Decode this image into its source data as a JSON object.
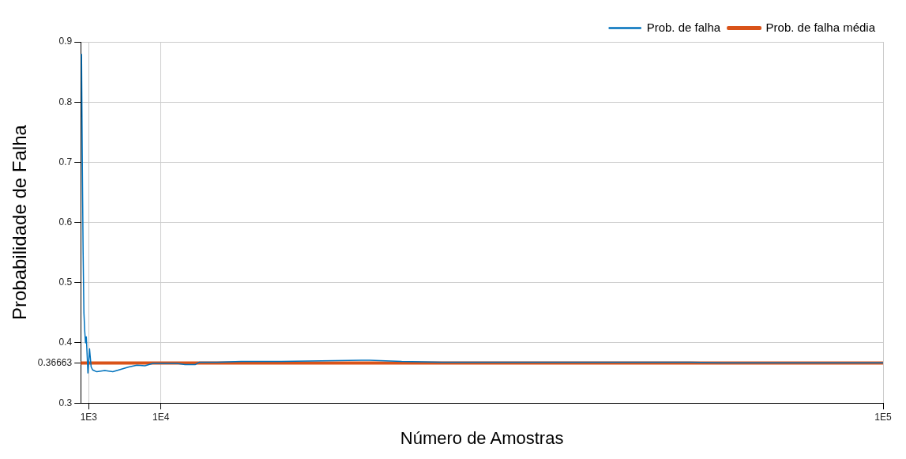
{
  "chart_data": {
    "type": "line",
    "xlabel": "Número de Amostras",
    "ylabel": "Probabilidade de Falha",
    "xlim": [
      0,
      100000
    ],
    "xticks": [
      {
        "value": 1000,
        "label": "1E3"
      },
      {
        "value": 10000,
        "label": "1E4"
      },
      {
        "value": 100000,
        "label": "1E5"
      }
    ],
    "ylim": [
      0.3,
      0.9
    ],
    "yticks": [
      0.3,
      0.36663,
      0.4,
      0.5,
      0.6,
      0.7,
      0.8,
      0.9
    ],
    "grid": true,
    "legend": "top right",
    "marker": "none",
    "line_style": "solid",
    "series": [
      {
        "name": "Prob. de falha",
        "color": "#0072bd",
        "x": [
          100,
          200,
          300,
          400,
          500,
          600,
          700,
          800,
          900,
          1000,
          1100,
          1300,
          1500,
          2000,
          3000,
          4000,
          5000,
          6000,
          7000,
          8000,
          9000,
          12000,
          13000,
          14300,
          14800,
          17000,
          20000,
          25000,
          30000,
          35000,
          36000,
          40000,
          45000,
          50000,
          55000,
          60000,
          65000,
          70000,
          76000,
          80000,
          90000,
          100000
        ],
        "values": [
          0.88,
          0.7,
          0.55,
          0.45,
          0.42,
          0.4,
          0.41,
          0.38,
          0.35,
          0.37,
          0.39,
          0.36,
          0.355,
          0.352,
          0.354,
          0.352,
          0.356,
          0.36,
          0.363,
          0.362,
          0.366,
          0.366,
          0.364,
          0.364,
          0.368,
          0.368,
          0.369,
          0.369,
          0.37,
          0.371,
          0.371,
          0.369,
          0.368,
          0.368,
          0.368,
          0.368,
          0.368,
          0.368,
          0.368,
          0.367,
          0.367,
          0.367
        ]
      },
      {
        "name": "Prob. de falha média",
        "color": "#d95319",
        "x": [
          0,
          100000
        ],
        "values": [
          0.36663,
          0.36663
        ]
      }
    ]
  }
}
